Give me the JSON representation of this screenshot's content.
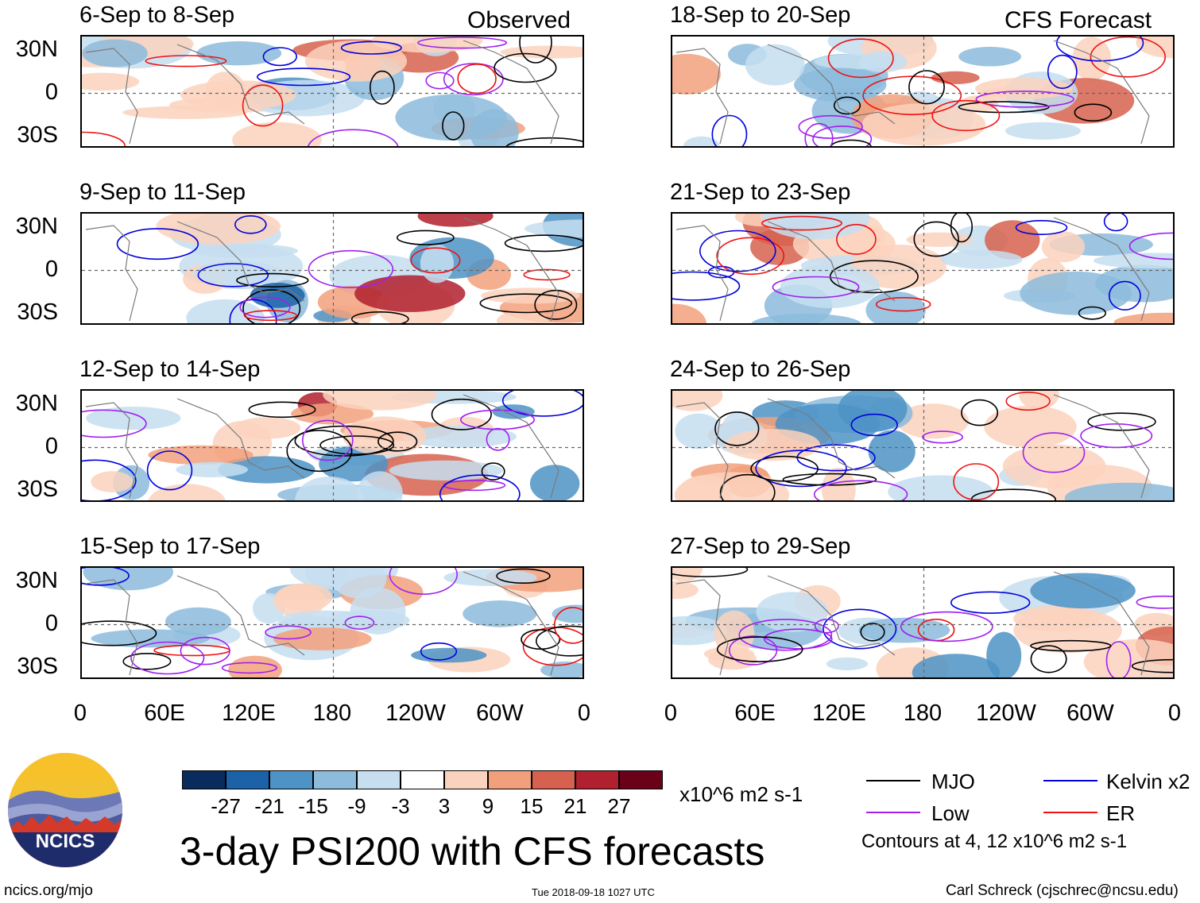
{
  "column_labels": {
    "observed": "Observed",
    "forecast": "CFS Forecast"
  },
  "panels": [
    {
      "title": "6-Sep to 8-Sep",
      "column": "observed"
    },
    {
      "title": "9-Sep to 11-Sep",
      "column": "observed"
    },
    {
      "title": "12-Sep to 14-Sep",
      "column": "observed"
    },
    {
      "title": "15-Sep to 17-Sep",
      "column": "observed"
    },
    {
      "title": "18-Sep to 20-Sep",
      "column": "forecast"
    },
    {
      "title": "21-Sep to 23-Sep",
      "column": "forecast"
    },
    {
      "title": "24-Sep to 26-Sep",
      "column": "forecast"
    },
    {
      "title": "27-Sep to 29-Sep",
      "column": "forecast"
    }
  ],
  "y_labels": [
    "30N",
    "0",
    "30S"
  ],
  "x_labels": [
    "0",
    "60E",
    "120E",
    "180",
    "120W",
    "60W",
    "0"
  ],
  "colorbar": {
    "ticks": [
      "-27",
      "-21",
      "-15",
      "-9",
      "-3",
      "3",
      "9",
      "15",
      "21",
      "27"
    ],
    "colors": [
      "#0a2c5c",
      "#1b62a8",
      "#4e93c6",
      "#8cbbdc",
      "#c6def0",
      "#ffffff",
      "#fbd2bd",
      "#f2a07c",
      "#d6614e",
      "#b0202e",
      "#6b0019"
    ],
    "units": "x10^6 m2 s-1"
  },
  "title": "3-day PSI200 with CFS forecasts",
  "legend": [
    {
      "label": "MJO",
      "color": "#000000"
    },
    {
      "label": "Kelvin x2",
      "color": "#0000dd"
    },
    {
      "label": "Low",
      "color": "#a020f0"
    },
    {
      "label": "ER",
      "color": "#ee1111"
    }
  ],
  "contour_note": "Contours at 4, 12 x10^6 m2 s-1",
  "logo_text": "NCICS",
  "footer": {
    "url": "ncics.org/mjo",
    "timestamp": "Tue 2018-09-18 1027 UTC",
    "credit": "Carl Schreck (cjschrec@ncsu.edu)"
  }
}
